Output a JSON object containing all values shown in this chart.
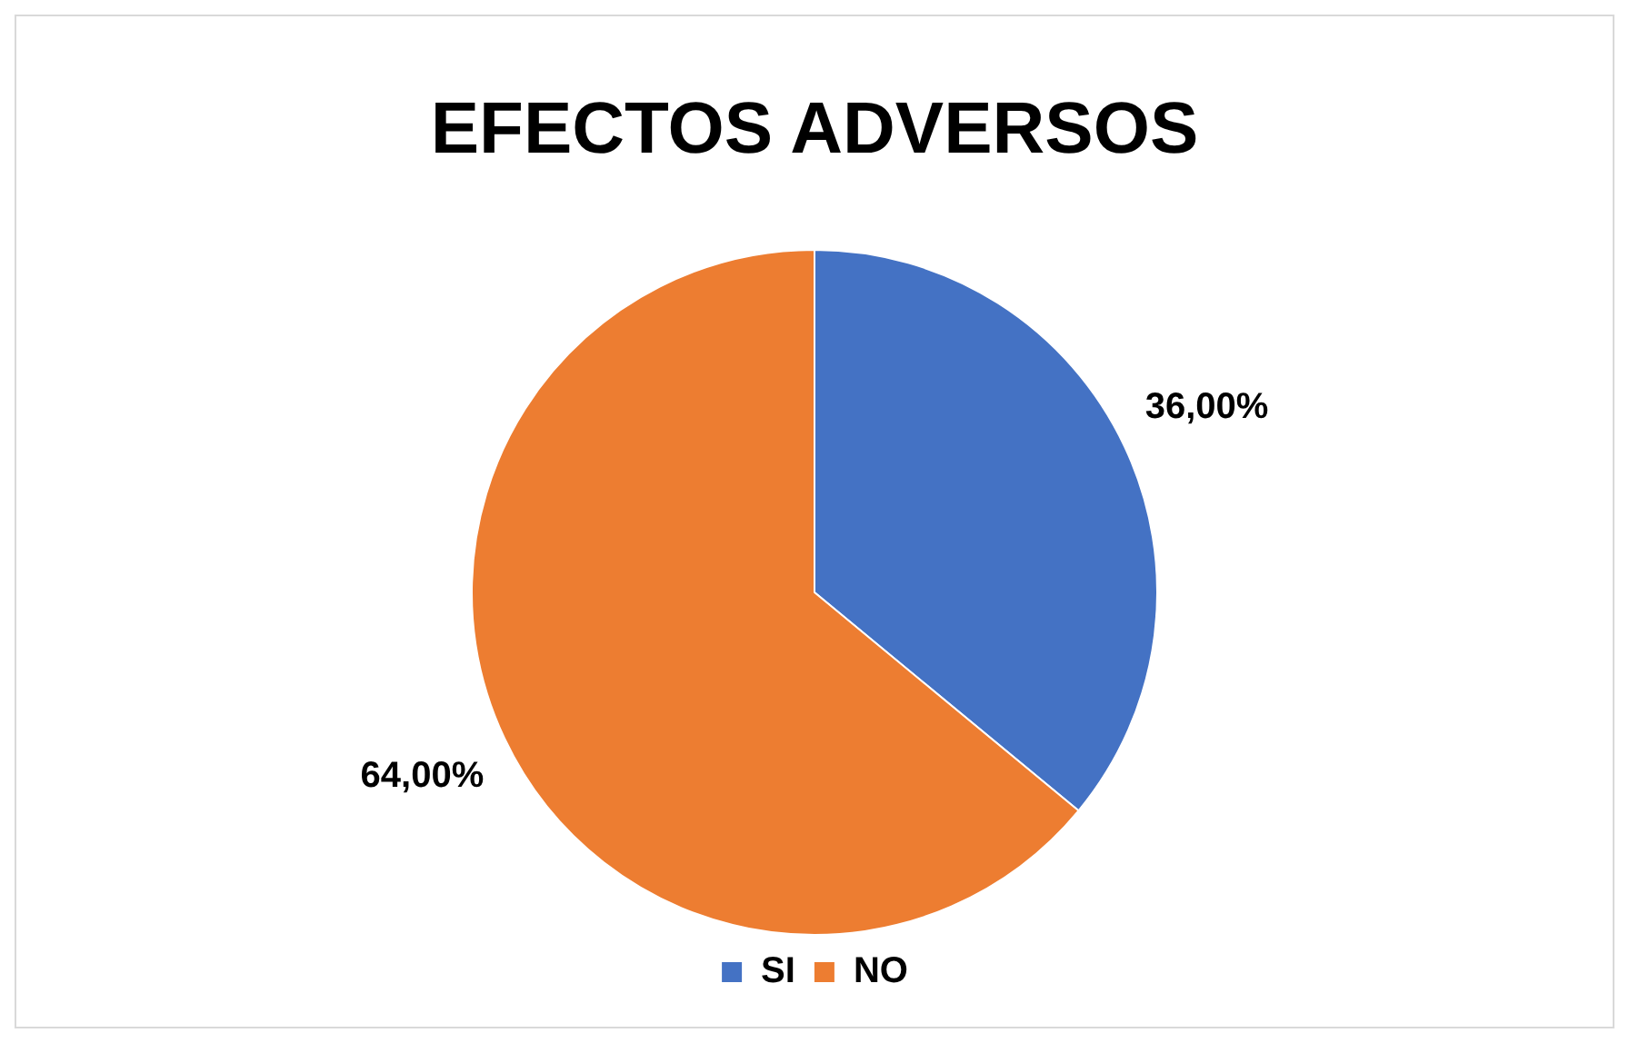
{
  "chart_data": {
    "type": "pie",
    "title": "EFECTOS ADVERSOS",
    "categories": [
      "SI",
      "NO"
    ],
    "values": [
      36,
      64
    ],
    "colors": [
      "#4472c4",
      "#ed7d31"
    ],
    "value_labels": [
      "36,00%",
      "64,00%"
    ],
    "legend": "bottom"
  }
}
